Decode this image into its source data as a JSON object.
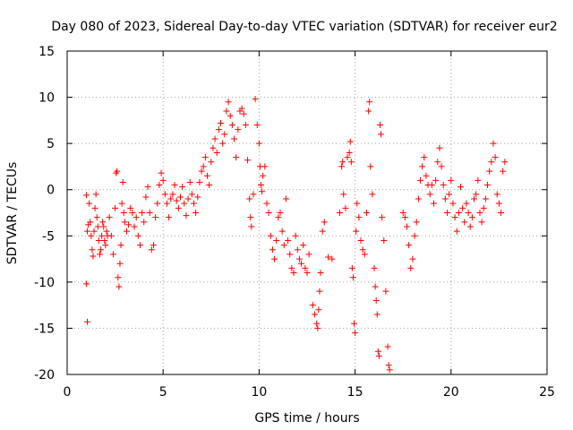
{
  "chart_data": {
    "type": "scatter",
    "title": "Day 080 of 2023, Sidereal Day-to-day VTEC variation (SDTVAR) for receiver eur2",
    "xlabel": "GPS time / hours",
    "ylabel": "SDTVAR / TECUs",
    "xlim": [
      0,
      25
    ],
    "ylim": [
      -20,
      15
    ],
    "xticks": [
      0,
      5,
      10,
      15,
      20,
      25
    ],
    "yticks": [
      -20,
      -15,
      -10,
      -5,
      0,
      5,
      10,
      15
    ],
    "grid": true,
    "marker": "+",
    "color": "#ff0000",
    "series": [
      {
        "name": "SDTVAR",
        "points": [
          [
            1.0,
            -0.6
          ],
          [
            1.0,
            -10.2
          ],
          [
            1.05,
            -14.3
          ],
          [
            1.05,
            -4.5
          ],
          [
            1.1,
            -3.8
          ],
          [
            1.15,
            -1.5
          ],
          [
            1.2,
            -3.5
          ],
          [
            1.25,
            -5.0
          ],
          [
            1.3,
            -6.5
          ],
          [
            1.35,
            -7.2
          ],
          [
            1.4,
            -4.5
          ],
          [
            1.45,
            -2.0
          ],
          [
            1.5,
            -0.5
          ],
          [
            1.55,
            -3.0
          ],
          [
            1.6,
            -4.0
          ],
          [
            1.65,
            -5.5
          ],
          [
            1.7,
            -7.0
          ],
          [
            1.75,
            -6.5
          ],
          [
            1.8,
            -5.0
          ],
          [
            1.85,
            -3.5
          ],
          [
            1.9,
            -4.0
          ],
          [
            1.95,
            -5.5
          ],
          [
            2.0,
            -6.0
          ],
          [
            2.05,
            -4.5
          ],
          [
            2.1,
            -5.0
          ],
          [
            2.2,
            -3.0
          ],
          [
            2.3,
            -5.0
          ],
          [
            2.4,
            -7.0
          ],
          [
            2.5,
            -2.0
          ],
          [
            2.55,
            1.8
          ],
          [
            2.6,
            2.0
          ],
          [
            2.65,
            -9.5
          ],
          [
            2.7,
            -10.5
          ],
          [
            2.75,
            -8.0
          ],
          [
            2.8,
            -6.0
          ],
          [
            2.85,
            -1.5
          ],
          [
            2.9,
            0.8
          ],
          [
            2.95,
            -2.5
          ],
          [
            3.0,
            -3.5
          ],
          [
            3.1,
            -4.5
          ],
          [
            3.2,
            -3.8
          ],
          [
            3.3,
            -2.0
          ],
          [
            3.4,
            -2.5
          ],
          [
            3.5,
            -4.0
          ],
          [
            3.6,
            -3.0
          ],
          [
            3.7,
            -5.0
          ],
          [
            3.8,
            -6.0
          ],
          [
            3.9,
            -2.5
          ],
          [
            4.0,
            -3.5
          ],
          [
            4.1,
            -0.8
          ],
          [
            4.2,
            0.3
          ],
          [
            4.3,
            -2.5
          ],
          [
            4.4,
            -6.5
          ],
          [
            4.5,
            -6.0
          ],
          [
            4.6,
            -3.0
          ],
          [
            4.7,
            -1.5
          ],
          [
            4.8,
            0.5
          ],
          [
            4.9,
            1.8
          ],
          [
            5.0,
            1.0
          ],
          [
            5.1,
            -0.5
          ],
          [
            5.2,
            -1.5
          ],
          [
            5.3,
            -3.0
          ],
          [
            5.4,
            -1.0
          ],
          [
            5.5,
            -0.5
          ],
          [
            5.6,
            0.5
          ],
          [
            5.7,
            -1.2
          ],
          [
            5.8,
            -2.0
          ],
          [
            5.9,
            -0.8
          ],
          [
            6.0,
            0.3
          ],
          [
            6.1,
            -1.5
          ],
          [
            6.2,
            -2.8
          ],
          [
            6.3,
            -1.0
          ],
          [
            6.4,
            0.8
          ],
          [
            6.5,
            -0.5
          ],
          [
            6.6,
            -1.5
          ],
          [
            6.7,
            -2.5
          ],
          [
            6.8,
            -0.8
          ],
          [
            6.9,
            0.8
          ],
          [
            7.0,
            2.0
          ],
          [
            7.1,
            2.5
          ],
          [
            7.2,
            3.5
          ],
          [
            7.3,
            1.5
          ],
          [
            7.4,
            0.5
          ],
          [
            7.5,
            3.0
          ],
          [
            7.6,
            4.5
          ],
          [
            7.7,
            5.5
          ],
          [
            7.8,
            4.0
          ],
          [
            7.9,
            6.5
          ],
          [
            8.0,
            7.2
          ],
          [
            8.1,
            5.0
          ],
          [
            8.2,
            6.0
          ],
          [
            8.3,
            8.5
          ],
          [
            8.4,
            9.5
          ],
          [
            8.5,
            8.0
          ],
          [
            8.6,
            7.0
          ],
          [
            8.7,
            5.5
          ],
          [
            8.8,
            3.5
          ],
          [
            8.9,
            6.5
          ],
          [
            9.0,
            8.5
          ],
          [
            9.1,
            8.8
          ],
          [
            9.2,
            8.2
          ],
          [
            9.3,
            7.0
          ],
          [
            9.4,
            3.2
          ],
          [
            9.5,
            -1.0
          ],
          [
            9.55,
            -3.0
          ],
          [
            9.6,
            -4.0
          ],
          [
            9.7,
            -0.5
          ],
          [
            9.8,
            9.8
          ],
          [
            9.9,
            7.0
          ],
          [
            10.0,
            5.0
          ],
          [
            10.05,
            2.5
          ],
          [
            10.1,
            0.5
          ],
          [
            10.15,
            -0.2
          ],
          [
            10.2,
            1.5
          ],
          [
            10.3,
            2.5
          ],
          [
            10.4,
            -1.5
          ],
          [
            10.5,
            -2.5
          ],
          [
            10.6,
            -5.0
          ],
          [
            10.7,
            -6.5
          ],
          [
            10.8,
            -7.5
          ],
          [
            10.9,
            -5.5
          ],
          [
            11.0,
            -3.0
          ],
          [
            11.1,
            -2.5
          ],
          [
            11.2,
            -4.5
          ],
          [
            11.3,
            -6.0
          ],
          [
            11.4,
            -1.0
          ],
          [
            11.5,
            -5.5
          ],
          [
            11.6,
            -7.0
          ],
          [
            11.7,
            -8.5
          ],
          [
            11.8,
            -9.0
          ],
          [
            11.9,
            -5.0
          ],
          [
            12.0,
            -6.5
          ],
          [
            12.1,
            -7.5
          ],
          [
            12.2,
            -8.0
          ],
          [
            12.3,
            -6.0
          ],
          [
            12.4,
            -8.5
          ],
          [
            12.5,
            -9.0
          ],
          [
            12.6,
            -7.0
          ],
          [
            12.8,
            -12.5
          ],
          [
            12.9,
            -13.5
          ],
          [
            13.0,
            -14.5
          ],
          [
            13.05,
            -15.0
          ],
          [
            13.1,
            -13.0
          ],
          [
            13.15,
            -11.0
          ],
          [
            13.2,
            -9.0
          ],
          [
            13.3,
            -4.5
          ],
          [
            13.4,
            -3.5
          ],
          [
            13.6,
            -7.3
          ],
          [
            13.8,
            -7.5
          ],
          [
            14.2,
            -2.5
          ],
          [
            14.3,
            2.5
          ],
          [
            14.35,
            3.0
          ],
          [
            14.4,
            -0.5
          ],
          [
            14.5,
            -2.0
          ],
          [
            14.6,
            3.5
          ],
          [
            14.7,
            4.0
          ],
          [
            14.75,
            5.2
          ],
          [
            14.8,
            3.0
          ],
          [
            14.85,
            -8.5
          ],
          [
            14.9,
            -9.5
          ],
          [
            14.95,
            -14.5
          ],
          [
            15.0,
            -15.5
          ],
          [
            15.05,
            -4.5
          ],
          [
            15.1,
            -1.5
          ],
          [
            15.2,
            -3.0
          ],
          [
            15.3,
            -5.5
          ],
          [
            15.4,
            -6.5
          ],
          [
            15.5,
            -7.0
          ],
          [
            15.6,
            -2.5
          ],
          [
            15.7,
            8.5
          ],
          [
            15.75,
            9.5
          ],
          [
            15.8,
            2.5
          ],
          [
            15.9,
            -0.5
          ],
          [
            16.0,
            -8.5
          ],
          [
            16.05,
            -10.5
          ],
          [
            16.1,
            -12.0
          ],
          [
            16.15,
            -13.5
          ],
          [
            16.2,
            -17.5
          ],
          [
            16.25,
            -18.0
          ],
          [
            16.3,
            7.0
          ],
          [
            16.35,
            6.0
          ],
          [
            16.4,
            -3.0
          ],
          [
            16.5,
            -5.5
          ],
          [
            16.6,
            -11.0
          ],
          [
            16.7,
            -17.0
          ],
          [
            16.75,
            -19.0
          ],
          [
            16.8,
            -19.5
          ],
          [
            17.5,
            -2.5
          ],
          [
            17.6,
            -3.0
          ],
          [
            17.7,
            -4.0
          ],
          [
            17.8,
            -6.0
          ],
          [
            17.9,
            -8.5
          ],
          [
            18.0,
            -7.5
          ],
          [
            18.1,
            -5.0
          ],
          [
            18.2,
            -3.5
          ],
          [
            18.3,
            -1.0
          ],
          [
            18.4,
            1.0
          ],
          [
            18.5,
            2.5
          ],
          [
            18.6,
            3.5
          ],
          [
            18.7,
            1.5
          ],
          [
            18.8,
            0.5
          ],
          [
            18.9,
            -0.5
          ],
          [
            19.0,
            0.5
          ],
          [
            19.1,
            -1.5
          ],
          [
            19.2,
            1.0
          ],
          [
            19.3,
            3.0
          ],
          [
            19.4,
            4.5
          ],
          [
            19.5,
            2.5
          ],
          [
            19.6,
            0.5
          ],
          [
            19.7,
            -1.0
          ],
          [
            19.8,
            -2.5
          ],
          [
            19.9,
            -0.5
          ],
          [
            20.0,
            1.0
          ],
          [
            20.1,
            -1.5
          ],
          [
            20.2,
            -3.0
          ],
          [
            20.3,
            -4.5
          ],
          [
            20.4,
            -2.5
          ],
          [
            20.5,
            0.3
          ],
          [
            20.6,
            -2.0
          ],
          [
            20.7,
            -3.5
          ],
          [
            20.8,
            -1.5
          ],
          [
            20.9,
            -2.5
          ],
          [
            21.0,
            -4.0
          ],
          [
            21.1,
            -3.0
          ],
          [
            21.2,
            -1.0
          ],
          [
            21.3,
            -0.5
          ],
          [
            21.4,
            1.0
          ],
          [
            21.5,
            -2.5
          ],
          [
            21.6,
            -3.5
          ],
          [
            21.7,
            -2.0
          ],
          [
            21.8,
            -1.0
          ],
          [
            21.9,
            0.5
          ],
          [
            22.0,
            2.0
          ],
          [
            22.1,
            3.0
          ],
          [
            22.2,
            5.0
          ],
          [
            22.3,
            3.5
          ],
          [
            22.4,
            -0.5
          ],
          [
            22.5,
            -1.5
          ],
          [
            22.6,
            -2.5
          ],
          [
            22.7,
            2.0
          ],
          [
            22.8,
            3.0
          ]
        ]
      }
    ]
  }
}
